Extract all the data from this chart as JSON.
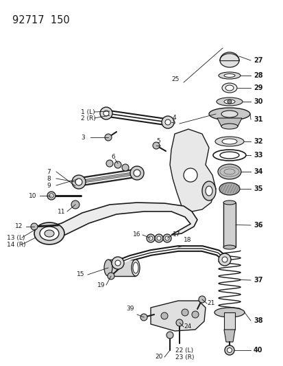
{
  "title": "92717  150",
  "bg_color": "#ffffff",
  "line_color": "#1a1a1a",
  "fig_width": 4.14,
  "fig_height": 5.33,
  "dpi": 100,
  "right_labels": [
    [
      "27",
      3.82,
      4.55
    ],
    [
      "28",
      3.82,
      4.32
    ],
    [
      "29",
      3.82,
      4.12
    ],
    [
      "30",
      3.82,
      3.95
    ],
    [
      "31",
      3.82,
      3.74
    ],
    [
      "32",
      3.82,
      3.55
    ],
    [
      "33",
      3.82,
      3.36
    ],
    [
      "34",
      3.82,
      3.16
    ],
    [
      "35",
      3.82,
      2.96
    ],
    [
      "36",
      3.82,
      2.65
    ],
    [
      "37",
      3.82,
      2.18
    ],
    [
      "38",
      3.82,
      1.38
    ],
    [
      "40",
      3.82,
      0.98
    ]
  ]
}
